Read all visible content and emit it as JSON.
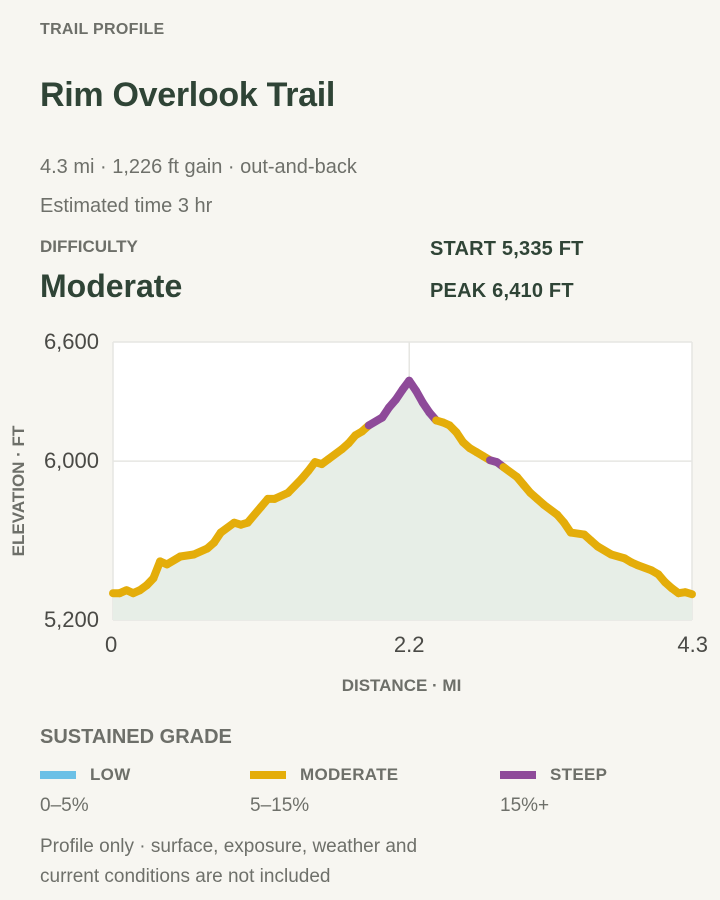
{
  "header": {
    "eyebrow": "TRAIL PROFILE",
    "title": "Rim Overlook Trail",
    "summary": "4.3 mi · 1,226 ft gain · out-and-back",
    "time": "Estimated time 3 hr"
  },
  "difficulty": {
    "label": "DIFFICULTY",
    "value": "Moderate"
  },
  "elevation": {
    "start": "START 5,335 FT",
    "peak": "PEAK 6,410 FT"
  },
  "chart_data": {
    "type": "line",
    "xlabel": "DISTANCE · MI",
    "ylabel": "ELEVATION · FT",
    "xlim": [
      0,
      4.3
    ],
    "ylim": [
      5200,
      6600
    ],
    "x_ticks": [
      "0",
      "2.2",
      "4.3"
    ],
    "x_tick_values": [
      0,
      2.2,
      4.3
    ],
    "y_ticks": [
      "6,600",
      "6,000",
      "5,200"
    ],
    "y_tick_values": [
      6600,
      6000,
      5200
    ],
    "grid": true,
    "area_fill": true,
    "colors": {
      "low": "#6cc0e6",
      "moderate": "#e4ad0a",
      "steep": "#8e4a99"
    },
    "x": [
      0,
      0.05,
      0.1,
      0.15,
      0.2,
      0.25,
      0.3,
      0.35,
      0.4,
      0.5,
      0.6,
      0.7,
      0.75,
      0.8,
      0.9,
      0.95,
      1.0,
      1.1,
      1.15,
      1.2,
      1.3,
      1.4,
      1.45,
      1.5,
      1.55,
      1.6,
      1.7,
      1.75,
      1.8,
      1.85,
      1.9,
      2.0,
      2.05,
      2.1,
      2.15,
      2.2,
      2.25,
      2.3,
      2.35,
      2.4,
      2.45,
      2.5,
      2.55,
      2.6,
      2.65,
      2.7,
      2.75,
      2.8,
      2.85,
      2.9,
      3.0,
      3.05,
      3.1,
      3.15,
      3.2,
      3.3,
      3.35,
      3.4,
      3.5,
      3.55,
      3.6,
      3.7,
      3.8,
      3.85,
      3.9,
      4.0,
      4.05,
      4.1,
      4.15,
      4.2,
      4.25,
      4.3
    ],
    "y": [
      5335,
      5335,
      5350,
      5335,
      5350,
      5375,
      5410,
      5495,
      5480,
      5520,
      5530,
      5560,
      5590,
      5640,
      5690,
      5680,
      5690,
      5770,
      5810,
      5810,
      5840,
      5910,
      5950,
      5995,
      5985,
      6010,
      6060,
      6090,
      6130,
      6150,
      6180,
      6220,
      6270,
      6310,
      6360,
      6405,
      6355,
      6295,
      6245,
      6205,
      6195,
      6180,
      6145,
      6095,
      6065,
      6045,
      6025,
      6005,
      5995,
      5970,
      5920,
      5880,
      5840,
      5810,
      5780,
      5730,
      5690,
      5640,
      5630,
      5600,
      5570,
      5530,
      5510,
      5490,
      5475,
      5450,
      5430,
      5390,
      5360,
      5335,
      5340,
      5330
    ],
    "grade": [
      "moderate",
      "moderate",
      "moderate",
      "moderate",
      "moderate",
      "moderate",
      "moderate",
      "moderate",
      "moderate",
      "moderate",
      "moderate",
      "moderate",
      "moderate",
      "moderate",
      "moderate",
      "moderate",
      "moderate",
      "moderate",
      "moderate",
      "moderate",
      "moderate",
      "moderate",
      "moderate",
      "moderate",
      "moderate",
      "moderate",
      "moderate",
      "moderate",
      "moderate",
      "moderate",
      "steep",
      "steep",
      "steep",
      "steep",
      "steep",
      "steep",
      "steep",
      "steep",
      "steep",
      "moderate",
      "moderate",
      "moderate",
      "moderate",
      "moderate",
      "moderate",
      "moderate",
      "moderate",
      "steep",
      "steep",
      "moderate",
      "moderate",
      "moderate",
      "moderate",
      "moderate",
      "moderate",
      "moderate",
      "moderate",
      "moderate",
      "moderate",
      "moderate",
      "moderate",
      "moderate",
      "moderate",
      "moderate",
      "moderate",
      "moderate",
      "moderate",
      "moderate",
      "moderate",
      "moderate",
      "moderate",
      "moderate"
    ]
  },
  "legend": {
    "title": "SUSTAINED GRADE",
    "items": [
      {
        "label": "LOW",
        "range": "0–5%",
        "color": "#6cc0e6"
      },
      {
        "label": "MODERATE",
        "range": "5–15%",
        "color": "#e4ad0a"
      },
      {
        "label": "STEEP",
        "range": "15%+",
        "color": "#8e4a99"
      }
    ]
  },
  "footnote": "Profile only · surface, exposure, weather and current conditions are not included"
}
